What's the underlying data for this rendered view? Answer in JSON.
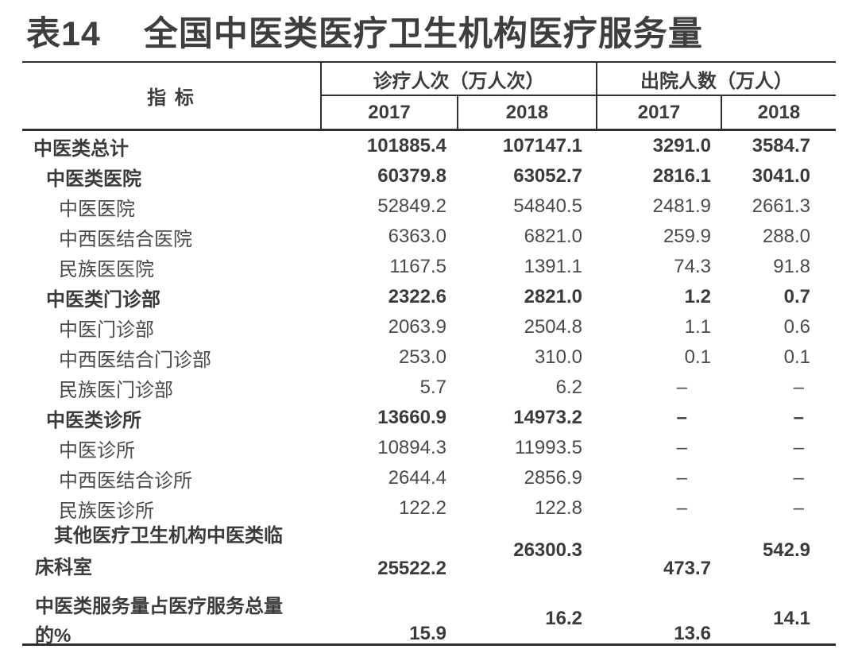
{
  "title": {
    "prefix": "表14",
    "text": "全国中医类医疗卫生机构医疗服务量"
  },
  "table": {
    "header": {
      "indicator": "指 标",
      "groups": [
        {
          "label": "诊疗人次（万人次）",
          "years": [
            "2017",
            "2018"
          ]
        },
        {
          "label": "出院人数（万人）",
          "years": [
            "2017",
            "2018"
          ]
        }
      ]
    },
    "rows": [
      {
        "label": "中医类总计",
        "bold": true,
        "indent": 0,
        "values": [
          "101885.4",
          "107147.1",
          "3291.0",
          "3584.7"
        ]
      },
      {
        "label": "中医类医院",
        "bold": true,
        "indent": 1,
        "values": [
          "60379.8",
          "63052.7",
          "2816.1",
          "3041.0"
        ]
      },
      {
        "label": "中医医院",
        "bold": false,
        "indent": 2,
        "values": [
          "52849.2",
          "54840.5",
          "2481.9",
          "2661.3"
        ]
      },
      {
        "label": "中西医结合医院",
        "bold": false,
        "indent": 2,
        "values": [
          "6363.0",
          "6821.0",
          "259.9",
          "288.0"
        ]
      },
      {
        "label": "民族医医院",
        "bold": false,
        "indent": 2,
        "values": [
          "1167.5",
          "1391.1",
          "74.3",
          "91.8"
        ]
      },
      {
        "label": "中医类门诊部",
        "bold": true,
        "indent": 1,
        "values": [
          "2322.6",
          "2821.0",
          "1.2",
          "0.7"
        ]
      },
      {
        "label": "中医门诊部",
        "bold": false,
        "indent": 2,
        "values": [
          "2063.9",
          "2504.8",
          "1.1",
          "0.6"
        ]
      },
      {
        "label": "中西医结合门诊部",
        "bold": false,
        "indent": 2,
        "values": [
          "253.0",
          "310.0",
          "0.1",
          "0.1"
        ]
      },
      {
        "label": "民族医门诊部",
        "bold": false,
        "indent": 2,
        "values": [
          "5.7",
          "6.2",
          "–",
          "–"
        ]
      },
      {
        "label": "中医类诊所",
        "bold": true,
        "indent": 1,
        "values": [
          "13660.9",
          "14973.2",
          "–",
          "–"
        ]
      },
      {
        "label": "中医诊所",
        "bold": false,
        "indent": 2,
        "values": [
          "10894.3",
          "11993.5",
          "–",
          "–"
        ]
      },
      {
        "label": "中西医结合诊所",
        "bold": false,
        "indent": 2,
        "values": [
          "2644.4",
          "2856.9",
          "–",
          "–"
        ]
      },
      {
        "label": "民族医诊所",
        "bold": false,
        "indent": 2,
        "values": [
          "122.2",
          "122.8",
          "–",
          "–"
        ]
      },
      {
        "label": "其他医疗卫生机构中医类临",
        "label2": "床科室",
        "bold": true,
        "wrap": 1,
        "values": [
          "25522.2",
          "26300.3",
          "473.7",
          "542.9"
        ]
      },
      {
        "label": "中医类服务量占医疗服务总量",
        "label2": "的%",
        "bold": true,
        "wrap": 2,
        "values": [
          "15.9",
          "16.2",
          "13.6",
          "14.1"
        ]
      }
    ]
  },
  "chart_data": {
    "type": "table",
    "title": "表14 全国中医类医疗卫生机构医疗服务量",
    "columns": [
      "指标",
      "诊疗人次（万人次）2017",
      "诊疗人次（万人次）2018",
      "出院人数（万人）2017",
      "出院人数（万人）2018"
    ],
    "rows": [
      [
        "中医类总计",
        101885.4,
        107147.1,
        3291.0,
        3584.7
      ],
      [
        "中医类医院",
        60379.8,
        63052.7,
        2816.1,
        3041.0
      ],
      [
        "中医医院",
        52849.2,
        54840.5,
        2481.9,
        2661.3
      ],
      [
        "中西医结合医院",
        6363.0,
        6821.0,
        259.9,
        288.0
      ],
      [
        "民族医医院",
        1167.5,
        1391.1,
        74.3,
        91.8
      ],
      [
        "中医类门诊部",
        2322.6,
        2821.0,
        1.2,
        0.7
      ],
      [
        "中医门诊部",
        2063.9,
        2504.8,
        1.1,
        0.6
      ],
      [
        "中西医结合门诊部",
        253.0,
        310.0,
        0.1,
        0.1
      ],
      [
        "民族医门诊部",
        5.7,
        6.2,
        null,
        null
      ],
      [
        "中医类诊所",
        13660.9,
        14973.2,
        null,
        null
      ],
      [
        "中医诊所",
        10894.3,
        11993.5,
        null,
        null
      ],
      [
        "中西医结合诊所",
        2644.4,
        2856.9,
        null,
        null
      ],
      [
        "民族医诊所",
        122.2,
        122.8,
        null,
        null
      ],
      [
        "其他医疗卫生机构中医类临床科室",
        25522.2,
        26300.3,
        473.7,
        542.9
      ],
      [
        "中医类服务量占医疗服务总量的%",
        15.9,
        16.2,
        13.6,
        14.1
      ]
    ]
  }
}
